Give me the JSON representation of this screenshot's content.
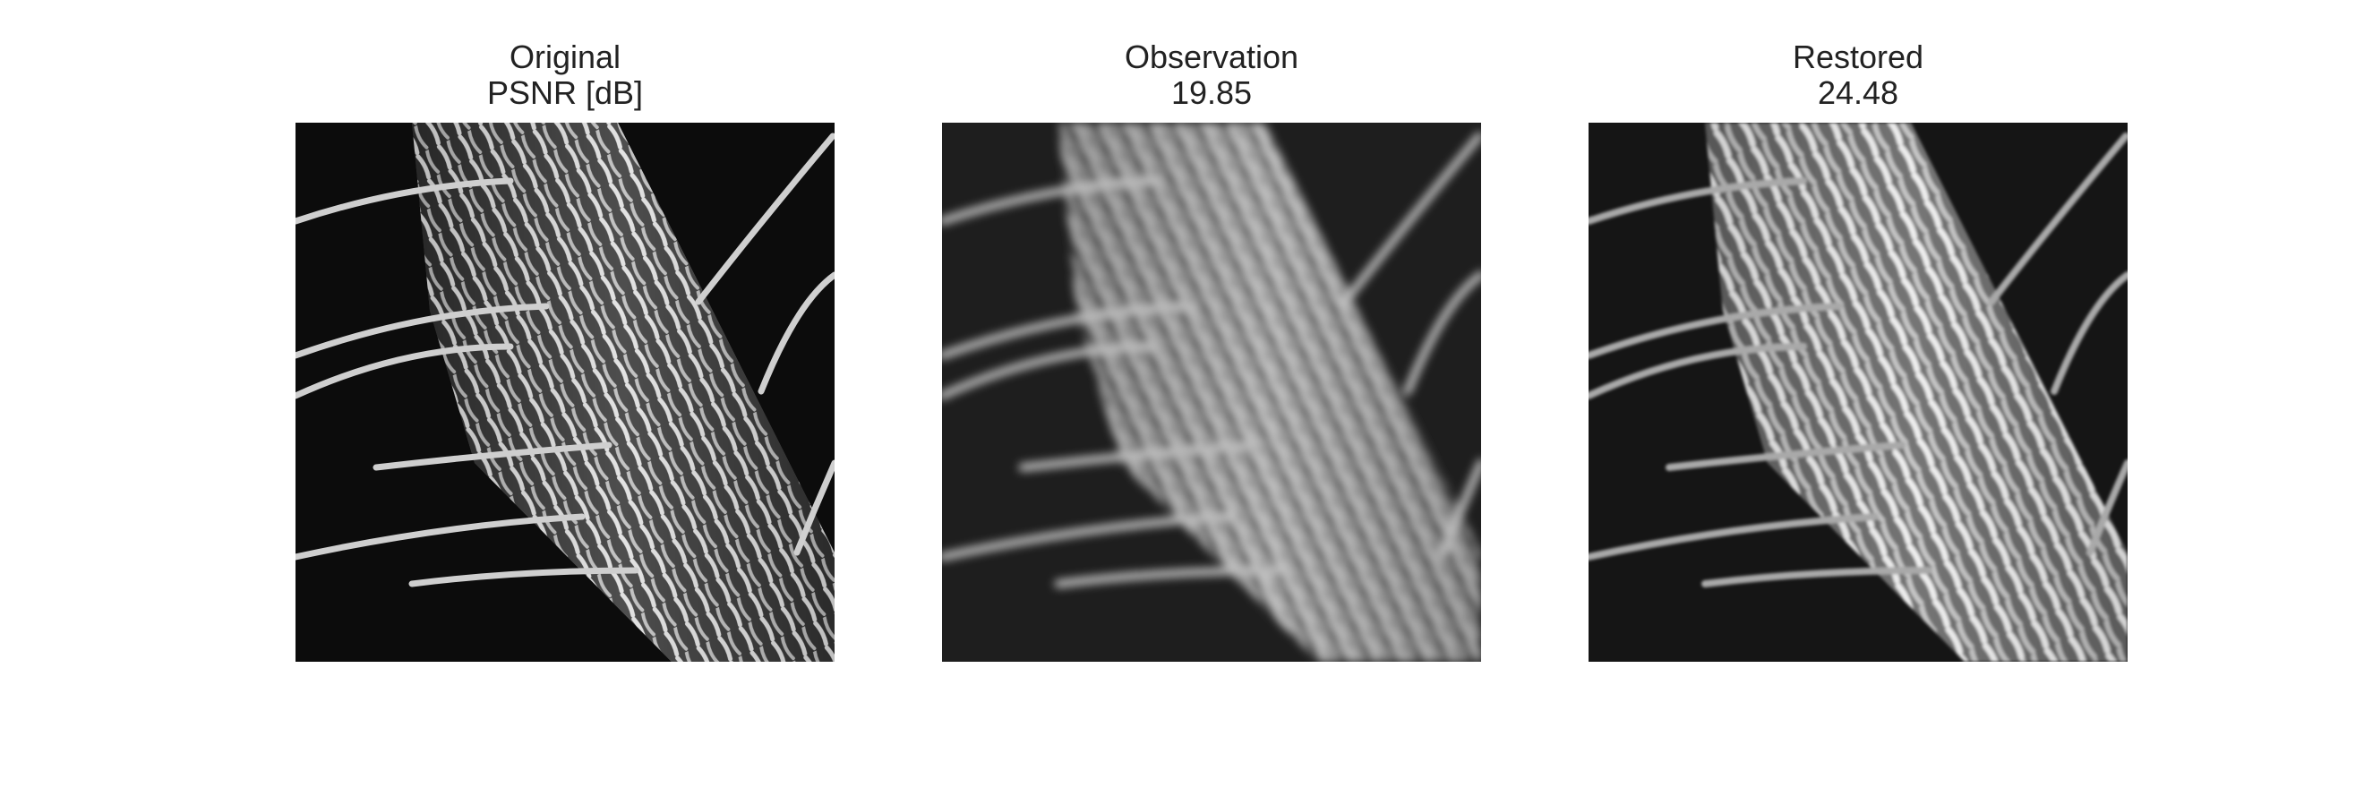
{
  "panels": [
    {
      "title": "Original",
      "subtitle": "PSNR [dB]"
    },
    {
      "title": "Observation",
      "subtitle": "19.85"
    },
    {
      "title": "Restored",
      "subtitle": "24.48"
    }
  ]
}
